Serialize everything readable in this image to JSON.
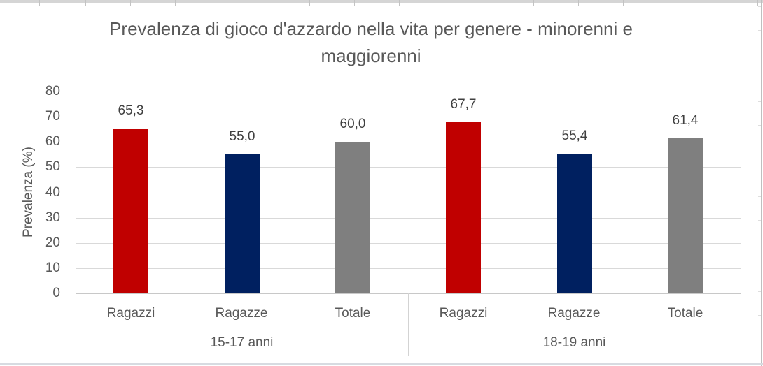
{
  "chart_data": {
    "type": "bar",
    "title": "Prevalenza di gioco d'azzardo nella vita per genere - minorenni e maggiorenni",
    "title_lines": [
      "Prevalenza di gioco d'azzardo nella vita per genere - minorenni e",
      "maggiorenni"
    ],
    "xlabel": "",
    "ylabel": "Prevalenza (%)",
    "ylim": [
      0,
      80
    ],
    "yticks": [
      0,
      10,
      20,
      30,
      40,
      50,
      60,
      70,
      80
    ],
    "grid": true,
    "legend": "none",
    "decimal_separator": ",",
    "categories": [
      "Ragazzi",
      "Ragazze",
      "Totale"
    ],
    "series_colors": {
      "Ragazzi": "#C00000",
      "Ragazze": "#002060",
      "Totale": "#7F7F7F"
    },
    "groups": [
      {
        "label": "15-17 anni",
        "bars": [
          {
            "category": "Ragazzi",
            "value": 65.3,
            "label": "65,3",
            "color": "#C00000"
          },
          {
            "category": "Ragazze",
            "value": 55.0,
            "label": "55,0",
            "color": "#002060"
          },
          {
            "category": "Totale",
            "value": 60.0,
            "label": "60,0",
            "color": "#7F7F7F"
          }
        ]
      },
      {
        "label": "18-19 anni",
        "bars": [
          {
            "category": "Ragazzi",
            "value": 67.7,
            "label": "67,7",
            "color": "#C00000"
          },
          {
            "category": "Ragazze",
            "value": 55.4,
            "label": "55,4",
            "color": "#002060"
          },
          {
            "category": "Totale",
            "value": 61.4,
            "label": "61,4",
            "color": "#7F7F7F"
          }
        ]
      }
    ]
  }
}
